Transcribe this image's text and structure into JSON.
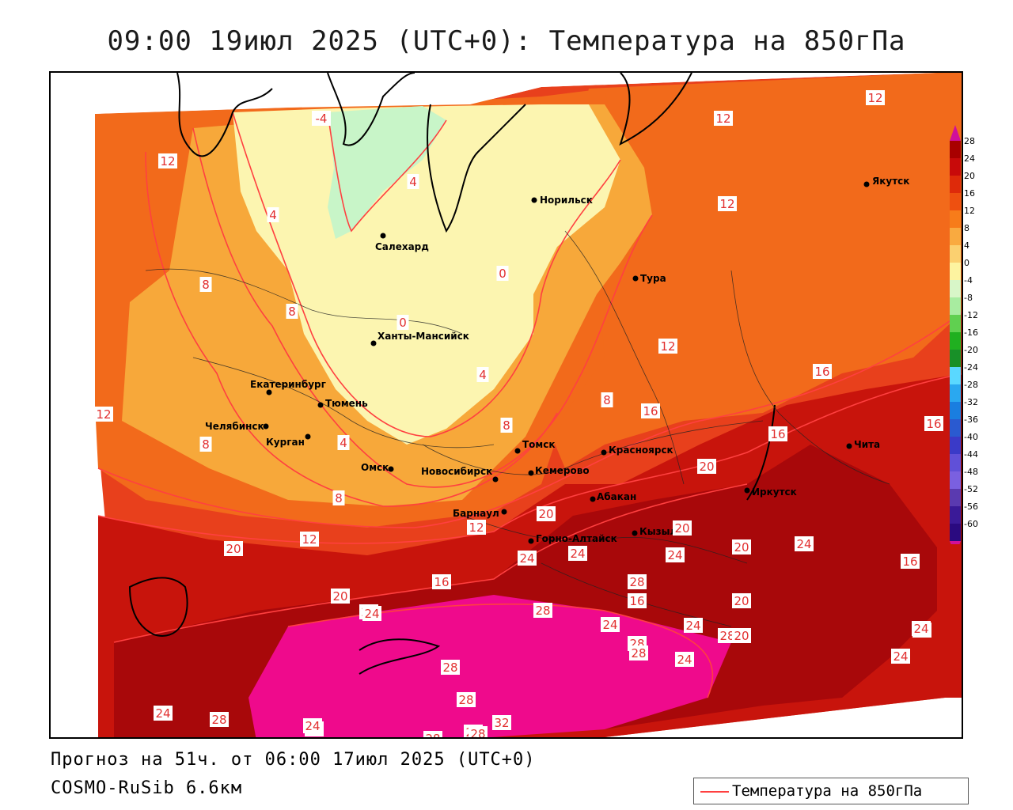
{
  "title": "09:00 19июл 2025 (UTC+0): Температура на 850гПа",
  "footer": {
    "forecast": "Прогноз на 51ч. от 06:00 17июл 2025 (UTC+0)",
    "model": "COSMO-RuSib 6.6км"
  },
  "legend": {
    "label": "Температура на 850гПа",
    "line_color": "#ff4040"
  },
  "colors": {
    "band_green": "#c8f5c8",
    "band_pale": "#fcf5b0",
    "band_light_orange": "#fbd28a",
    "band_orange": "#f7a83a",
    "band_dark_orange": "#f26a1b",
    "band_red": "#e8401c",
    "band_darkred": "#c8140c",
    "band_maroon": "#a8080a",
    "band_magenta": "#ef0a8c",
    "isotherm": "#ff4040"
  },
  "colorbar": {
    "ticks": [
      "28",
      "24",
      "20",
      "16",
      "12",
      "8",
      "4",
      "0",
      "-4",
      "-8",
      "-12",
      "-16",
      "-20",
      "-24",
      "-28",
      "-32",
      "-36",
      "-40",
      "-44",
      "-48",
      "-52",
      "-56",
      "-60"
    ],
    "colors": [
      "#a80000",
      "#c80a0a",
      "#de2a0a",
      "#ee5010",
      "#f77c1a",
      "#f9aa40",
      "#fbd070",
      "#fdf3a0",
      "#d8f6c8",
      "#a8eca0",
      "#60d050",
      "#20b020",
      "#189028",
      "#5ad8ff",
      "#2aa8f0",
      "#1a7ee0",
      "#2a5ad0",
      "#3a3ac8",
      "#6050d8",
      "#7a60e0",
      "#5a3ab0",
      "#3a1a98",
      "#2a0a80"
    ]
  },
  "cities": [
    {
      "name": "Норильск"
    },
    {
      "name": "Салехард"
    },
    {
      "name": "Тура"
    },
    {
      "name": "Якутск"
    },
    {
      "name": "Ханты-Мансийск"
    },
    {
      "name": "Екатеринбург"
    },
    {
      "name": "Тюмень"
    },
    {
      "name": "Челябинск"
    },
    {
      "name": "Курган"
    },
    {
      "name": "Омск"
    },
    {
      "name": "Новосибирск"
    },
    {
      "name": "Томск"
    },
    {
      "name": "Кемерово"
    },
    {
      "name": "Красноярск"
    },
    {
      "name": "Барнаул"
    },
    {
      "name": "Абакан"
    },
    {
      "name": "Горно-Алтайск"
    },
    {
      "name": "Кызыл"
    },
    {
      "name": "Иркутск"
    },
    {
      "name": "Чита"
    }
  ],
  "isotherm_labels": [
    "12",
    "12",
    "12",
    "12",
    "12",
    "4",
    "-4",
    "4",
    "4",
    "8",
    "8",
    "8",
    "0",
    "0",
    "4",
    "8",
    "12",
    "16",
    "16",
    "16",
    "16",
    "12",
    "8",
    "8",
    "20",
    "20",
    "20",
    "12",
    "16",
    "20",
    "24",
    "24",
    "24",
    "24",
    "20",
    "24",
    "16",
    "16",
    "20",
    "20",
    "24",
    "24",
    "28",
    "28",
    "24",
    "28",
    "28",
    "24",
    "28",
    "20",
    "24",
    "24",
    "28",
    "28",
    "28",
    "24",
    "32",
    "24",
    "28",
    "20",
    "24",
    "28",
    "24"
  ]
}
